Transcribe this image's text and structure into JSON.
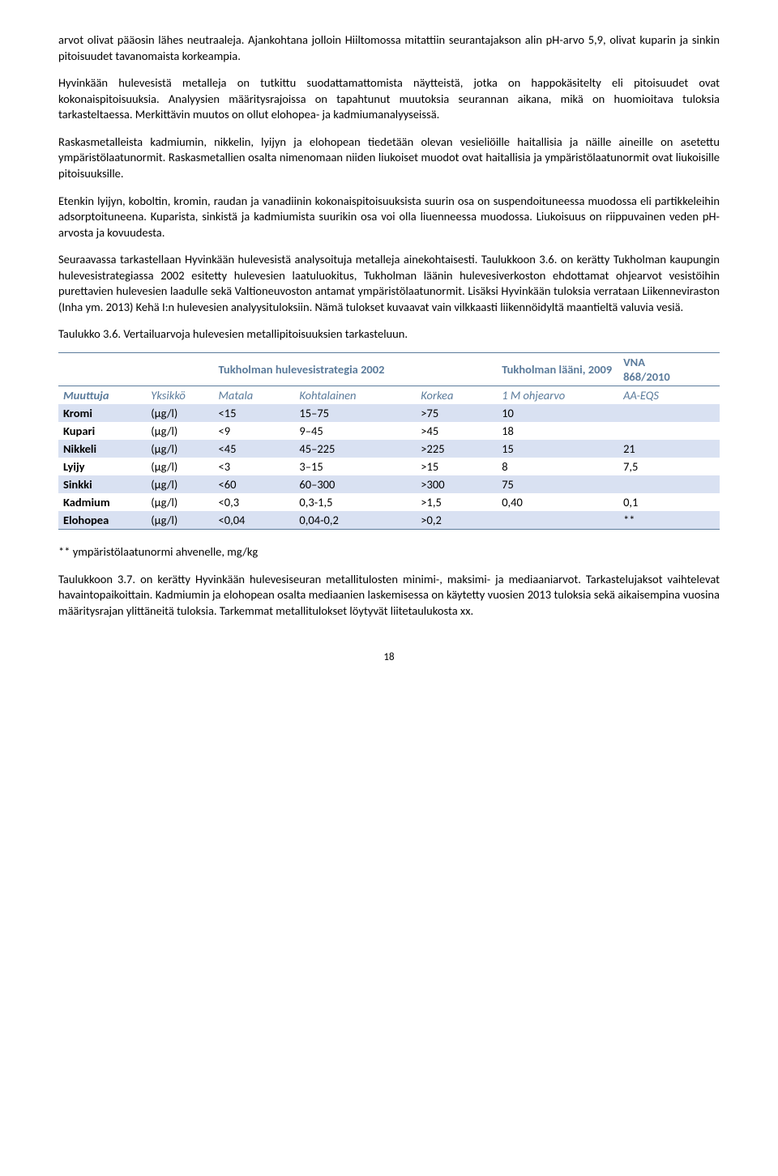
{
  "para1": "arvot olivat pääosin lähes neutraaleja. Ajankohtana jolloin Hiiltomossa mitattiin seurantajakson alin pH-arvo 5,9, olivat kuparin ja sinkin pitoisuudet tavanomaista korkeampia.",
  "para2": "Hyvinkään hulevesistä metalleja on tutkittu suodattamattomista näytteistä, jotka on happokäsitelty eli pitoisuudet ovat kokonaispitoisuuksia. Analyysien määritysrajoissa on tapahtunut muutoksia seurannan aikana, mikä on huomioitava tuloksia tarkasteltaessa. Merkittävin muutos on ollut elohopea- ja kadmiumanalyyseissä.",
  "para3": "Raskasmetalleista kadmiumin, nikkelin, lyijyn ja elohopean tiedetään olevan vesieliöille haitallisia ja näille aineille on asetettu ympäristölaatunormit. Raskasmetallien osalta nimenomaan niiden liukoiset muodot ovat haitallisia ja ympäristölaatunormit ovat liukoisille pitoisuuksille.",
  "para4": "Etenkin lyijyn, koboltin, kromin, raudan ja vanadiinin kokonaispitoisuuksista suurin osa on suspendoituneessa muodossa eli partikkeleihin adsorptoituneena. Kuparista, sinkistä ja kadmiumista suurikin osa voi olla liuenneessa muodossa. Liukoisuus on riippuvainen veden pH-arvosta ja kovuudesta.",
  "para5": "Seuraavassa tarkastellaan Hyvinkään hulevesistä analysoituja metalleja ainekohtaisesti. Taulukkoon 3.6. on kerätty Tukholman kaupungin hulevesistrategiassa 2002 esitetty hulevesien laatuluokitus, Tukholman läänin hulevesiverkoston ehdottamat ohjearvot vesistöihin purettavien hulevesien laadulle sekä Valtioneuvoston antamat ympäristölaatunormit. Lisäksi Hyvinkään tuloksia verrataan Liikenneviraston (Inha ym. 2013) Kehä I:n hulevesien analyysituloksiin. Nämä tulokset kuvaavat vain vilkkaasti liikennöidyltä maantieltä valuvia vesiä.",
  "caption": "Taulukko 3.6. Vertailuarvoja hulevesien metallipitoisuuksien tarkasteluun.",
  "table": {
    "header1": {
      "strategia": "Tukholman hulevesistrategia 2002",
      "laani": "Tukholman lääni, 2009",
      "vna": "VNA",
      "vnaYear": "868/2010"
    },
    "header2": {
      "muuttuja": "Muuttuja",
      "yksikko": "Yksikkö",
      "matala": "Matala",
      "kohtalainen": "Kohtalainen",
      "korkea": "Korkea",
      "ohjearvo": "1 M ohjearvo",
      "aaeqs": "AA-EQS"
    },
    "rows": [
      {
        "muuttuja": "Kromi",
        "yksikko": "(μg/l)",
        "matala": "<15",
        "kohtalainen": "15–75",
        "korkea": ">75",
        "ohjearvo": "10",
        "aaeqs": ""
      },
      {
        "muuttuja": "Kupari",
        "yksikko": "(μg/l)",
        "matala": "<9",
        "kohtalainen": "9–45",
        "korkea": ">45",
        "ohjearvo": "18",
        "aaeqs": ""
      },
      {
        "muuttuja": "Nikkeli",
        "yksikko": "(μg/l)",
        "matala": "<45",
        "kohtalainen": "45–225",
        "korkea": ">225",
        "ohjearvo": "15",
        "aaeqs": "21"
      },
      {
        "muuttuja": "Lyijy",
        "yksikko": "(μg/l)",
        "matala": "<3",
        "kohtalainen": "3–15",
        "korkea": ">15",
        "ohjearvo": "8",
        "aaeqs": "7,5"
      },
      {
        "muuttuja": "Sinkki",
        "yksikko": "(μg/l)",
        "matala": "<60",
        "kohtalainen": "60–300",
        "korkea": ">300",
        "ohjearvo": "75",
        "aaeqs": ""
      },
      {
        "muuttuja": "Kadmium",
        "yksikko": "(μg/l)",
        "matala": "<0,3",
        "kohtalainen": "0,3-1,5",
        "korkea": ">1,5",
        "ohjearvo": "0,40",
        "aaeqs": "0,1"
      },
      {
        "muuttuja": "Elohopea",
        "yksikko": "(μg/l)",
        "matala": "<0,04",
        "kohtalainen": "0,04-0,2",
        "korkea": ">0,2",
        "ohjearvo": "",
        "aaeqs": "**"
      }
    ],
    "stripe_color": "#d9e1f2",
    "border_color": "#5b7b9b",
    "header_text_color": "#5b7b9b"
  },
  "footnote": "** ympäristölaatunormi ahvenelle, mg/kg",
  "para6": "Taulukkoon 3.7. on kerätty Hyvinkään hulevesiseuran metallitulosten minimi-, maksimi- ja mediaaniarvot. Tarkastelujaksot vaihtelevat havaintopaikoittain. Kadmiumin ja elohopean osalta mediaanien laskemisessa on käytetty vuosien 2013 tuloksia sekä aikaisempina vuosina määritysrajan ylittäneitä tuloksia. Tarkemmat metallitulokset löytyvät liitetaulukosta xx.",
  "pagenum": "18"
}
